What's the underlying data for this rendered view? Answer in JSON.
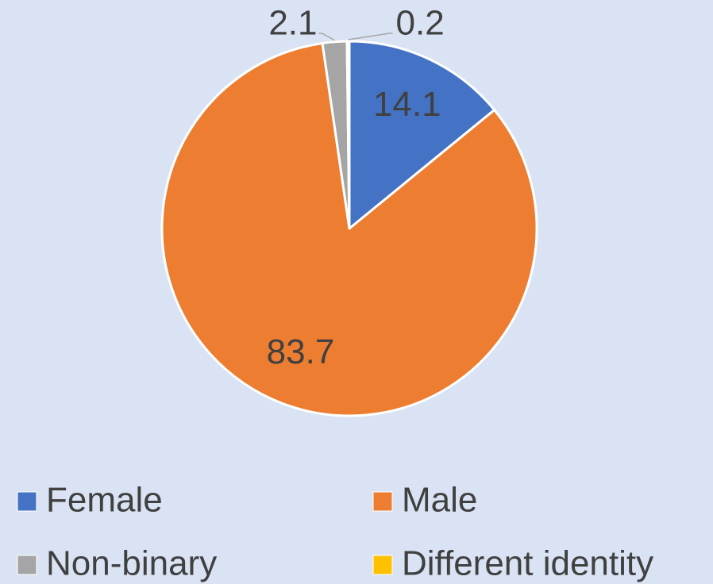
{
  "chart_data": {
    "type": "pie",
    "categories": [
      "Female",
      "Male",
      "Non-binary",
      "Different identity"
    ],
    "values": [
      14.1,
      83.7,
      2.1,
      0.2
    ],
    "colors": [
      "#4472c4",
      "#ed7d31",
      "#a5a5a5",
      "#ffc000"
    ],
    "legend": "bottom"
  }
}
